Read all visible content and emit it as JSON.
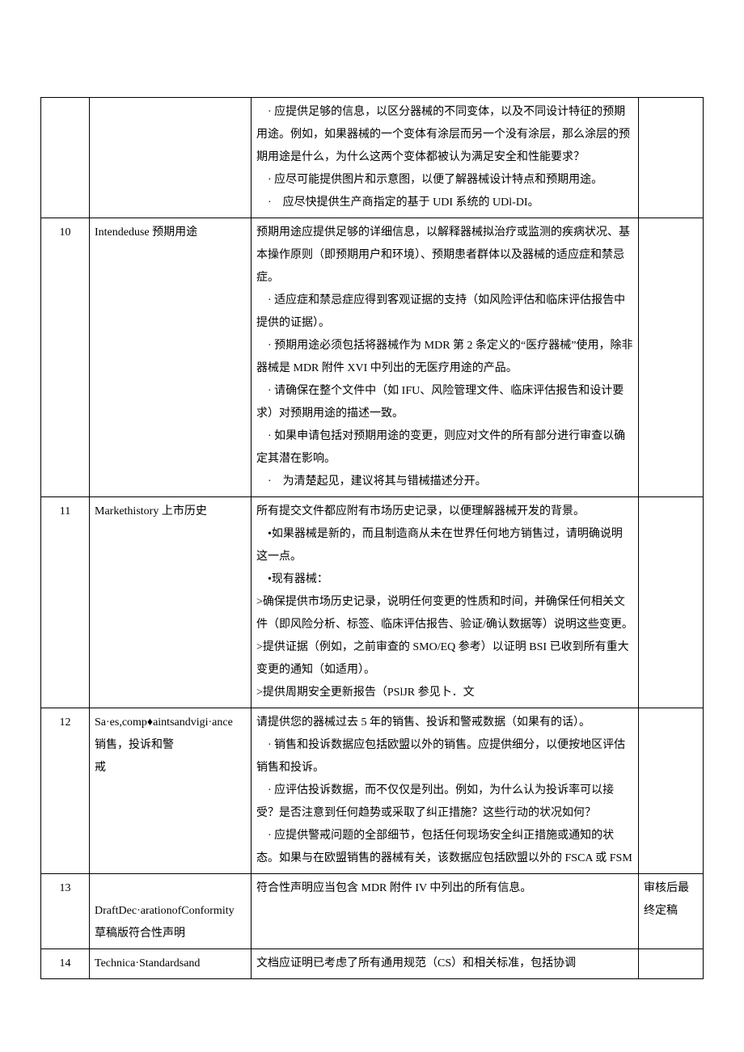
{
  "rows": [
    {
      "num": "",
      "title": "",
      "body": [
        "　· 应提供足够的信息，以区分器械的不同变体，以及不同设计特征的预期用途。例如，如果器械的一个变体有涂层而另一个没有涂层，那么涂层的预期用途是什么，为什么这两个变体都被认为满足安全和性能要求？",
        "　· 应尽可能提供图片和示意图，以便了解器械设计特点和预期用途。",
        "　·　应尽快提供生产商指定的基于 UDI 系统的 UDl-DI。"
      ],
      "remark": ""
    },
    {
      "num": "10",
      "title": "Intendeduse 预期用途",
      "body": [
        "预期用途应提供足够的详细信息，以解释器械拟治疗或监测的疾病状况、基本操作原则（即预期用户和环境）、预期患者群体以及器械的适应症和禁忌症。",
        "　· 适应症和禁忌症应得到客观证据的支持（如风险评估和临床评估报告中提供的证据）。",
        "　· 预期用途必须包括将器械作为 MDR 第 2 条定义的“医疗器械”使用，除非器械是 MDR 附件 XVI 中列出的无医疗用途的产品。",
        "　· 请确保在整个文件中（如 IFU、风险管理文件、临床评估报告和设计要求）对预期用途的描述一致。",
        "　· 如果申请包括对预期用途的变更，则应对文件的所有部分进行审查以确定其潜在影响。",
        "　·　为清楚起见，建议将其与错械描述分开。"
      ],
      "remark": ""
    },
    {
      "num": "11",
      "title": "Markethistory 上市历史",
      "body": [
        "所有提交文件都应附有市场历史记录，以便理解器械开发的背景。",
        "　•如果器械是新的，而且制造商从未在世界任何地方销售过，请明确说明这一点。",
        "　•现有器械：",
        ">确保提供市场历史记录，说明任何变更的性质和时间，并确保任何相关文件（即风险分析、标签、临床评估报告、验证/确认数据等）说明这些变更。",
        ">提供证据（例如，之前审查的 SMO/EQ 参考）以证明 BSI 已收到所有重大变更的通知（如适用）。",
        ">提供周期安全更新报告（PSlJR 参见卜．文"
      ],
      "remark": ""
    },
    {
      "num": "12",
      "title": "Sa·es,comp♦aintsandvigi·ance 销售，投诉和警\n戒",
      "body": [
        "请提供您的器械过去 5 年的销售、投诉和警戒数据（如果有的话）。",
        "　· 销售和投诉数据应包括欧盟以外的销售。应提供细分，以便按地区评估销售和投诉。",
        "　· 应评估投诉数据，而不仅仅是列出。例如，为什么认为投诉率可以接受？是否注意到任何趋势或采取了纠正措施？这些行动的状况如何？",
        "　· 应提供警戒问题的全部细节，包括任何现场安全纠正措施或通知的状态。如果与在欧盟销售的器械有关，该数据应包括欧盟以外的 FSCA 或 FSM"
      ],
      "remark": ""
    },
    {
      "num": "13",
      "title": "\nDraftDec·arationofConformity 草稿版符合性声明",
      "body": [
        "符合性声明应当包含 MDR 附件 IV 中列出的所有信息。"
      ],
      "remark": "审核后最终定稿"
    },
    {
      "num": "14",
      "title": "Technica·Standardsand",
      "body": [
        "文档应证明已考虑了所有通用规范（CS）和相关标准，包括协调"
      ],
      "remark": ""
    }
  ]
}
